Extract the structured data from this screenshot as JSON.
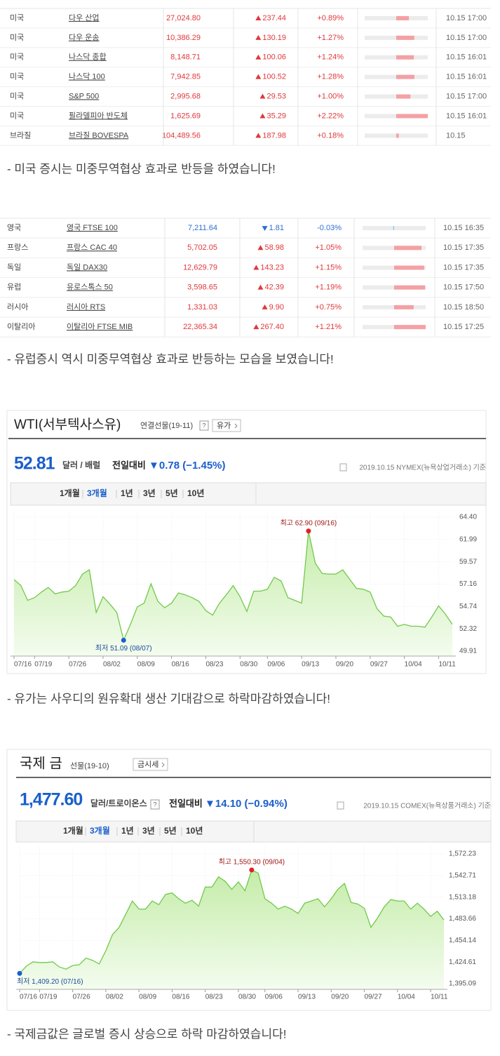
{
  "us_table": {
    "rows": [
      {
        "country": "미국",
        "name": "다우 산업",
        "price": "27,024.80",
        "direction": "up",
        "change": "237.44",
        "pct": {
          "value": 0.89,
          "label": "+0.89%"
        },
        "time": "10.15 17:00"
      },
      {
        "country": "미국",
        "name": "다우 운송",
        "price": "10,386.29",
        "direction": "up",
        "change": "130.19",
        "pct": {
          "value": 1.27,
          "label": "+1.27%"
        },
        "time": "10.15 17:00"
      },
      {
        "country": "미국",
        "name": "나스닥 종합",
        "price": "8,148.71",
        "direction": "up",
        "change": "100.06",
        "pct": {
          "value": 1.24,
          "label": "+1.24%"
        },
        "time": "10.15 16:01"
      },
      {
        "country": "미국",
        "name": "나스닥 100",
        "price": "7,942.85",
        "direction": "up",
        "change": "100.52",
        "pct": {
          "value": 1.28,
          "label": "+1.28%"
        },
        "time": "10.15 16:01"
      },
      {
        "country": "미국",
        "name": "S&P 500",
        "price": "2,995.68",
        "direction": "up",
        "change": "29.53",
        "pct": {
          "value": 1.0,
          "label": "+1.00%"
        },
        "time": "10.15 17:00"
      },
      {
        "country": "미국",
        "name": "필라델피아 반도체",
        "price": "1,625.69",
        "direction": "up",
        "change": "35.29",
        "pct": {
          "value": 2.22,
          "label": "+2.22%"
        },
        "time": "10.15 16:01"
      },
      {
        "country": "브라질",
        "name": "브라질 BOVESPA",
        "price": "104,489.56",
        "direction": "up",
        "change": "187.98",
        "pct": {
          "value": 0.18,
          "label": "+0.18%"
        },
        "time": "10.15"
      }
    ]
  },
  "us_comment": "- 미국 증시는 미중무역협상 효과로 반등을 하였습니다!",
  "eu_table": {
    "rows": [
      {
        "country": "영국",
        "name": "영국 FTSE 100",
        "price": "7,211.64",
        "direction": "down",
        "change": "1.81",
        "pct": {
          "value": -0.03,
          "label": "-0.03%"
        },
        "time": "10.15 16:35"
      },
      {
        "country": "프랑스",
        "name": "프랑스 CAC 40",
        "price": "5,702.05",
        "direction": "up",
        "change": "58.98",
        "pct": {
          "value": 1.05,
          "label": "+1.05%"
        },
        "time": "10.15 17:35"
      },
      {
        "country": "독일",
        "name": "독일 DAX30",
        "price": "12,629.79",
        "direction": "up",
        "change": "143.23",
        "pct": {
          "value": 1.15,
          "label": "+1.15%"
        },
        "time": "10.15 17:35"
      },
      {
        "country": "유럽",
        "name": "유로스톡스 50",
        "price": "3,598.65",
        "direction": "up",
        "change": "42.39",
        "pct": {
          "value": 1.19,
          "label": "+1.19%"
        },
        "time": "10.15 17:50"
      },
      {
        "country": "러시아",
        "name": "러시아 RTS",
        "price": "1,331.03",
        "direction": "up",
        "change": "9.90",
        "pct": {
          "value": 0.75,
          "label": "+0.75%"
        },
        "time": "10.15 18:50"
      },
      {
        "country": "이탈리아",
        "name": "이탈리아 FTSE MIB",
        "price": "22,365.34",
        "direction": "up",
        "change": "267.40",
        "pct": {
          "value": 1.21,
          "label": "+1.21%"
        },
        "time": "10.15 17:25"
      }
    ]
  },
  "eu_comment": "- 유럽증시 역시 미중무역협상 효과로 반등하는 모습을 보였습니다!",
  "wti": {
    "title": "WTI(서부텍사스유)",
    "contract": "연결선물(19-11)",
    "help": "?",
    "button": "유가",
    "price": "52.81",
    "unit": "달러 / 배럴",
    "diff_label": "전일대비",
    "diff": "▼0.78 (−1.45%)",
    "source": "2019.10.15  NYMEX(뉴욕상업거래소) 기준",
    "tabs": [
      "1개월",
      "3개월",
      "1년",
      "3년",
      "5년",
      "10년"
    ],
    "active_tab": 1,
    "chart": {
      "type": "area",
      "color": "#72c94b",
      "categories": [
        "07/16",
        null,
        null,
        "07/19",
        null,
        null,
        null,
        null,
        "07/26",
        null,
        null,
        null,
        null,
        "08/02",
        null,
        null,
        null,
        null,
        "08/09",
        null,
        null,
        null,
        null,
        "08/16",
        null,
        null,
        null,
        null,
        "08/23",
        null,
        null,
        null,
        null,
        "08/30",
        null,
        null,
        null,
        "09/06",
        null,
        null,
        null,
        null,
        "09/13",
        null,
        null,
        null,
        null,
        "09/20",
        null,
        null,
        null,
        null,
        "09/27",
        null,
        null,
        null,
        null,
        "10/04",
        null,
        null,
        null,
        null,
        "10/11",
        null,
        null
      ],
      "values": [
        57.65,
        57.0,
        55.4,
        55.7,
        56.3,
        56.8,
        56.1,
        56.3,
        56.4,
        57.0,
        58.25,
        58.7,
        54.1,
        55.8,
        55.0,
        54.1,
        51.09,
        52.8,
        54.7,
        55.1,
        57.2,
        55.3,
        54.6,
        55.1,
        56.2,
        56.0,
        55.7,
        55.3,
        54.3,
        53.8,
        55.1,
        56.0,
        57.0,
        55.8,
        54.2,
        56.4,
        56.4,
        56.6,
        57.9,
        57.5,
        55.7,
        55.4,
        55.1,
        62.9,
        59.4,
        58.3,
        58.25,
        58.25,
        58.7,
        57.7,
        56.7,
        56.6,
        56.3,
        54.5,
        53.7,
        53.6,
        52.6,
        52.8,
        52.6,
        52.6,
        52.5,
        53.6,
        54.8,
        53.9,
        52.81
      ],
      "ylim": [
        49.91,
        64.4
      ],
      "yticks": [
        {
          "value": 64.4,
          "label": "64.40"
        },
        {
          "value": 61.99,
          "label": "61.99"
        },
        {
          "value": 59.57,
          "label": "59.57"
        },
        {
          "value": 57.16,
          "label": "57.16"
        },
        {
          "value": 54.74,
          "label": "54.74"
        },
        {
          "value": 52.32,
          "label": "52.32"
        },
        {
          "value": 49.91,
          "label": "49.91"
        }
      ],
      "high_label": "최고 62.90 (09/16)",
      "low_label": "최저 51.09 (08/07)"
    }
  },
  "wti_comment": "- 유가는 사우디의 원유확대 생산 기대감으로 하락마감하였습니다!",
  "gold": {
    "title": "국제 금",
    "contract": "선물(19-10)",
    "help": "?",
    "button": "금시세",
    "price": "1,477.60",
    "unit": "달러/트로이온스",
    "diff_label": "전일대비",
    "diff": "▼14.10 (−0.94%)",
    "source": "2019.10.15  COMEX(뉴욕상품거래소) 기준",
    "tabs": [
      "1개월",
      "3개월",
      "1년",
      "3년",
      "5년",
      "10년"
    ],
    "active_tab": 1,
    "chart": {
      "type": "area",
      "color": "#72c94b",
      "categories": [
        "07/16",
        null,
        null,
        "07/19",
        null,
        null,
        null,
        null,
        "07/26",
        null,
        null,
        null,
        null,
        "08/02",
        null,
        null,
        null,
        null,
        "08/09",
        null,
        null,
        null,
        null,
        "08/16",
        null,
        null,
        null,
        null,
        "08/23",
        null,
        null,
        null,
        null,
        "08/30",
        null,
        null,
        null,
        "09/06",
        null,
        null,
        null,
        null,
        "09/13",
        null,
        null,
        null,
        null,
        "09/20",
        null,
        null,
        null,
        null,
        "09/27",
        null,
        null,
        null,
        null,
        "10/04",
        null,
        null,
        null,
        null,
        "10/11",
        null,
        null
      ],
      "values": [
        1409.2,
        1419,
        1425,
        1424,
        1424,
        1425,
        1418,
        1415,
        1420,
        1421,
        1430,
        1427,
        1422,
        1440,
        1462,
        1472,
        1490,
        1508,
        1497,
        1497,
        1508,
        1503,
        1517,
        1519,
        1511,
        1505,
        1509,
        1501,
        1527,
        1527,
        1541,
        1535,
        1524,
        1534,
        1522,
        1550.3,
        1546,
        1511,
        1505,
        1497,
        1501,
        1497,
        1491,
        1505,
        1508,
        1511,
        1500,
        1511,
        1524,
        1532,
        1506,
        1504,
        1498,
        1472,
        1485,
        1500,
        1510,
        1508,
        1508,
        1497,
        1505,
        1497,
        1487,
        1494,
        1482
      ],
      "ylim": [
        1395.09,
        1572.23
      ],
      "yticks": [
        {
          "value": 1572.23,
          "label": "1,572.23"
        },
        {
          "value": 1542.71,
          "label": "1,542.71"
        },
        {
          "value": 1513.18,
          "label": "1,513.18"
        },
        {
          "value": 1483.66,
          "label": "1,483.66"
        },
        {
          "value": 1454.14,
          "label": "1,454.14"
        },
        {
          "value": 1424.61,
          "label": "1,424.61"
        },
        {
          "value": 1395.09,
          "label": "1,395.09"
        }
      ],
      "high_label": "최고 1,550.30 (09/04)",
      "low_label": "최저 1,409.20 (07/16)"
    }
  },
  "gold_comment": "- 국제금값은 글로벌 증시 상승으로 하락 마감하였습니다!"
}
